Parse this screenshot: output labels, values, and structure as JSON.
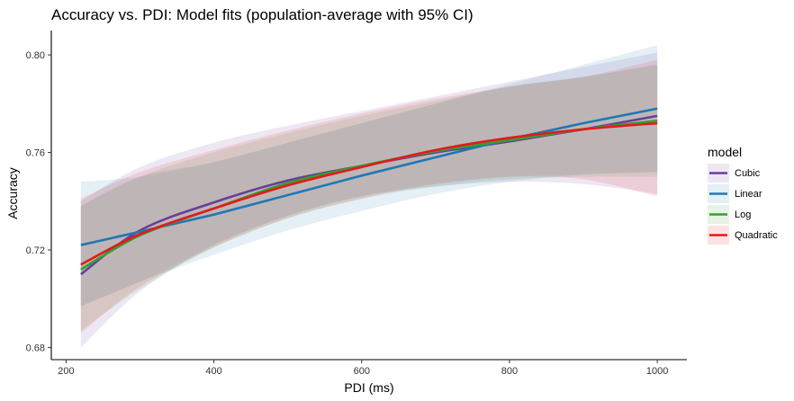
{
  "chart_data": {
    "type": "line",
    "title": "Accuracy vs. PDI: Model fits (population-average with 95% CI)",
    "xlabel": "PDI (ms)",
    "ylabel": "Accuracy",
    "xlim": [
      180,
      1040
    ],
    "ylim": [
      0.675,
      0.81
    ],
    "x_ticks": [
      200,
      400,
      600,
      800,
      1000
    ],
    "y_ticks": [
      0.68,
      0.72,
      0.76,
      0.8
    ],
    "x_tick_labels": [
      "200",
      "400",
      "600",
      "800",
      "1000"
    ],
    "y_tick_labels": [
      "0.68",
      "0.72",
      "0.76",
      "0.80"
    ],
    "grid": false,
    "legend": {
      "title": "model",
      "placement": "right"
    },
    "series": [
      {
        "name": "Cubic",
        "color": "#6a3d9a",
        "x": [
          220,
          300,
          400,
          500,
          600,
          700,
          800,
          900,
          1000
        ],
        "y": [
          0.71,
          0.728,
          0.7395,
          0.7485,
          0.7545,
          0.76,
          0.7645,
          0.7695,
          0.775
        ],
        "lower": [
          0.68,
          0.703,
          0.722,
          0.734,
          0.742,
          0.746,
          0.748,
          0.747,
          0.743
        ],
        "upper": [
          0.74,
          0.754,
          0.764,
          0.771,
          0.777,
          0.783,
          0.789,
          0.795,
          0.801
        ]
      },
      {
        "name": "Linear",
        "color": "#1f78b4",
        "x": [
          220,
          300,
          400,
          500,
          600,
          700,
          800,
          900,
          1000
        ],
        "y": [
          0.722,
          0.7275,
          0.7345,
          0.7425,
          0.7505,
          0.758,
          0.7655,
          0.772,
          0.778
        ],
        "lower": [
          0.697,
          0.707,
          0.718,
          0.728,
          0.736,
          0.743,
          0.748,
          0.751,
          0.752
        ],
        "upper": [
          0.748,
          0.75,
          0.756,
          0.764,
          0.772,
          0.78,
          0.788,
          0.796,
          0.804
        ]
      },
      {
        "name": "Log",
        "color": "#33a02c",
        "x": [
          220,
          300,
          400,
          500,
          600,
          700,
          800,
          900,
          1000
        ],
        "y": [
          0.712,
          0.726,
          0.737,
          0.7475,
          0.7545,
          0.7605,
          0.765,
          0.7695,
          0.773
        ],
        "lower": [
          0.687,
          0.704,
          0.721,
          0.733,
          0.741,
          0.746,
          0.749,
          0.75,
          0.75
        ],
        "upper": [
          0.738,
          0.75,
          0.76,
          0.768,
          0.775,
          0.781,
          0.787,
          0.791,
          0.796
        ]
      },
      {
        "name": "Quadratic",
        "color": "#e31a1c",
        "x": [
          220,
          300,
          400,
          500,
          600,
          700,
          800,
          900,
          1000
        ],
        "y": [
          0.714,
          0.7265,
          0.737,
          0.7465,
          0.754,
          0.761,
          0.766,
          0.7695,
          0.772
        ],
        "lower": [
          0.686,
          0.705,
          0.721,
          0.733,
          0.741,
          0.747,
          0.75,
          0.749,
          0.742
        ],
        "upper": [
          0.741,
          0.752,
          0.761,
          0.769,
          0.776,
          0.782,
          0.787,
          0.791,
          0.798
        ]
      }
    ]
  }
}
